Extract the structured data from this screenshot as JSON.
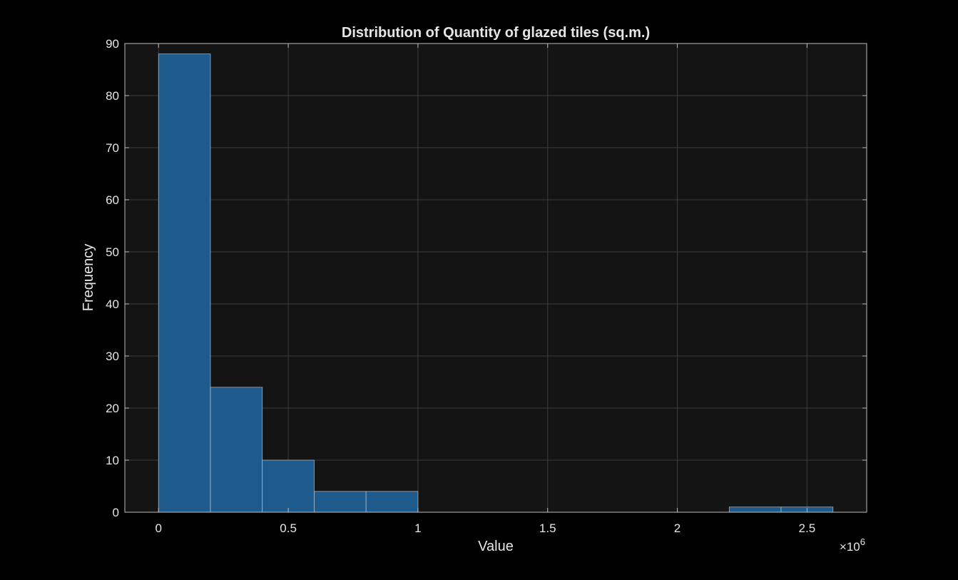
{
  "chart_data": {
    "type": "histogram",
    "title": "Distribution of Quantity of glazed tiles (sq.m.)",
    "xlabel": "Value",
    "ylabel": "Frequency",
    "x_multiplier_label": "×10",
    "x_multiplier_exponent": "6",
    "xlim": [
      -0.13,
      2.73
    ],
    "ylim": [
      0,
      90
    ],
    "xticks": [
      0,
      0.5,
      1,
      1.5,
      2,
      2.5
    ],
    "xtick_labels": [
      "0",
      "0.5",
      "1",
      "1.5",
      "2",
      "2.5"
    ],
    "yticks": [
      0,
      10,
      20,
      30,
      40,
      50,
      60,
      70,
      80,
      90
    ],
    "ytick_labels": [
      "0",
      "10",
      "20",
      "30",
      "40",
      "50",
      "60",
      "70",
      "80",
      "90"
    ],
    "bin_edges": [
      0,
      0.2,
      0.4,
      0.6,
      0.8,
      1.0,
      1.2,
      1.4,
      1.6,
      1.8,
      2.0,
      2.2,
      2.4,
      2.6
    ],
    "counts": [
      88,
      24,
      10,
      4,
      4,
      0,
      0,
      0,
      0,
      0,
      0,
      1,
      1
    ],
    "grid": true,
    "bar_color": "#1f5a8c",
    "bar_edge_color": "#c8d2dc",
    "axes_bg": "#141414",
    "figure_bg": "#000000",
    "text_color": "#e6e6e6"
  }
}
